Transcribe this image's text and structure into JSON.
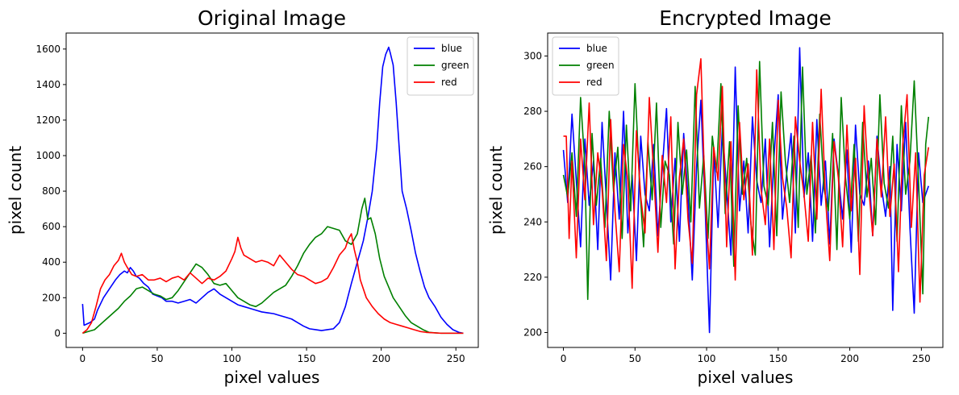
{
  "chart_data": [
    {
      "type": "line",
      "title": "Original Image",
      "xlabel": "pixel values",
      "ylabel": "pixel count",
      "xlim": [
        -11,
        265
      ],
      "ylim": [
        -80,
        1690
      ],
      "xticks": [
        0,
        50,
        100,
        150,
        200,
        250
      ],
      "yticks": [
        0,
        200,
        400,
        600,
        800,
        1000,
        1200,
        1400,
        1600
      ],
      "legend_position": "top-right",
      "grid": false,
      "series": [
        {
          "name": "blue",
          "color": "#0000ff",
          "x": [
            0,
            1,
            5,
            8,
            10,
            14,
            18,
            22,
            25,
            28,
            30,
            32,
            34,
            36,
            38,
            41,
            44,
            47,
            50,
            53,
            56,
            60,
            64,
            68,
            72,
            76,
            80,
            84,
            88,
            92,
            96,
            100,
            104,
            108,
            112,
            116,
            120,
            124,
            128,
            132,
            136,
            140,
            144,
            148,
            152,
            156,
            160,
            164,
            168,
            172,
            176,
            180,
            184,
            188,
            191,
            194,
            197,
            199,
            201,
            203,
            205,
            206,
            208,
            210,
            212,
            214,
            217,
            220,
            223,
            226,
            229,
            232,
            236,
            240,
            244,
            248,
            252,
            255
          ],
          "y": [
            165,
            45,
            60,
            80,
            130,
            200,
            250,
            300,
            330,
            350,
            340,
            370,
            350,
            320,
            310,
            280,
            260,
            220,
            210,
            200,
            180,
            180,
            170,
            180,
            190,
            170,
            200,
            230,
            250,
            220,
            200,
            180,
            160,
            150,
            140,
            130,
            120,
            115,
            110,
            100,
            90,
            80,
            60,
            40,
            25,
            20,
            15,
            20,
            25,
            60,
            150,
            280,
            400,
            520,
            650,
            800,
            1050,
            1300,
            1500,
            1570,
            1610,
            1580,
            1510,
            1300,
            1050,
            800,
            700,
            580,
            450,
            350,
            260,
            200,
            150,
            90,
            50,
            20,
            5,
            0
          ]
        },
        {
          "name": "green",
          "color": "#008000",
          "x": [
            0,
            4,
            8,
            12,
            16,
            20,
            24,
            28,
            32,
            36,
            40,
            44,
            48,
            52,
            56,
            60,
            64,
            68,
            72,
            76,
            80,
            84,
            88,
            92,
            96,
            100,
            104,
            108,
            112,
            116,
            120,
            124,
            128,
            132,
            136,
            140,
            144,
            148,
            152,
            156,
            160,
            164,
            168,
            172,
            176,
            180,
            184,
            187,
            189,
            191,
            193,
            196,
            199,
            202,
            205,
            208,
            212,
            216,
            220,
            224,
            228,
            232,
            240,
            255
          ],
          "y": [
            0,
            10,
            20,
            50,
            80,
            110,
            140,
            180,
            210,
            250,
            260,
            240,
            220,
            210,
            190,
            200,
            240,
            290,
            340,
            390,
            370,
            330,
            280,
            270,
            280,
            240,
            200,
            180,
            160,
            150,
            170,
            200,
            230,
            250,
            270,
            320,
            380,
            450,
            500,
            540,
            560,
            600,
            590,
            580,
            520,
            500,
            560,
            700,
            760,
            640,
            650,
            560,
            420,
            320,
            260,
            200,
            150,
            100,
            60,
            40,
            20,
            5,
            0,
            0
          ]
        },
        {
          "name": "red",
          "color": "#ff0000",
          "x": [
            0,
            3,
            6,
            9,
            12,
            15,
            18,
            21,
            24,
            26,
            28,
            30,
            33,
            36,
            40,
            44,
            48,
            52,
            56,
            60,
            64,
            68,
            72,
            76,
            80,
            84,
            88,
            92,
            96,
            100,
            102,
            104,
            106,
            108,
            112,
            116,
            120,
            124,
            128,
            132,
            136,
            140,
            144,
            148,
            152,
            156,
            160,
            164,
            168,
            172,
            176,
            178,
            180,
            182,
            184,
            186,
            190,
            194,
            198,
            202,
            206,
            210,
            214,
            218,
            222,
            226,
            230,
            240,
            255
          ],
          "y": [
            0,
            20,
            60,
            150,
            250,
            300,
            330,
            380,
            410,
            450,
            400,
            370,
            330,
            320,
            330,
            300,
            300,
            310,
            290,
            310,
            320,
            300,
            340,
            310,
            280,
            310,
            300,
            320,
            350,
            420,
            460,
            540,
            480,
            440,
            420,
            400,
            410,
            400,
            380,
            440,
            400,
            360,
            330,
            320,
            300,
            280,
            290,
            310,
            370,
            440,
            480,
            530,
            560,
            470,
            400,
            300,
            200,
            150,
            110,
            80,
            60,
            50,
            40,
            30,
            20,
            10,
            5,
            0,
            0
          ]
        }
      ]
    },
    {
      "type": "line",
      "title": "Encrypted Image",
      "xlabel": "pixel values",
      "ylabel": "pixel count",
      "xlim": [
        -11,
        265
      ],
      "ylim": [
        194.6,
        308.3
      ],
      "xticks": [
        0,
        50,
        100,
        150,
        200,
        250
      ],
      "yticks": [
        200,
        220,
        240,
        260,
        280,
        300
      ],
      "legend_position": "top-left",
      "grid": false,
      "series": [
        {
          "name": "blue",
          "color": "#0000ff",
          "x": [
            0,
            3,
            6,
            9,
            12,
            15,
            18,
            21,
            24,
            27,
            30,
            33,
            36,
            39,
            42,
            45,
            48,
            51,
            54,
            57,
            60,
            63,
            66,
            69,
            72,
            75,
            78,
            81,
            84,
            87,
            90,
            93,
            96,
            99,
            102,
            105,
            108,
            111,
            114,
            117,
            120,
            123,
            126,
            129,
            132,
            135,
            138,
            141,
            144,
            147,
            150,
            153,
            156,
            159,
            162,
            165,
            168,
            171,
            174,
            177,
            180,
            183,
            186,
            189,
            192,
            195,
            198,
            201,
            204,
            207,
            210,
            213,
            216,
            219,
            222,
            225,
            228,
            230,
            233,
            236,
            239,
            242,
            245,
            248,
            251,
            255
          ],
          "y": [
            266,
            247,
            279,
            255,
            231,
            270,
            246,
            262,
            230,
            276,
            248,
            219,
            265,
            241,
            280,
            236,
            257,
            226,
            271,
            250,
            244,
            268,
            235,
            259,
            281,
            240,
            263,
            233,
            272,
            249,
            219,
            260,
            284,
            245,
            200,
            266,
            238,
            274,
            252,
            228,
            296,
            244,
            262,
            236,
            278,
            255,
            247,
            270,
            231,
            263,
            286,
            241,
            258,
            272,
            236,
            303,
            249,
            265,
            233,
            277,
            246,
            262,
            232,
            270,
            257,
            241,
            266,
            229,
            275,
            250,
            246,
            262,
            235,
            271,
            253,
            242,
            260,
            208,
            268,
            244,
            276,
            238,
            207,
            265,
            247,
            253
          ]
        },
        {
          "name": "green",
          "color": "#008000",
          "x": [
            0,
            3,
            6,
            9,
            12,
            15,
            17,
            20,
            23,
            26,
            29,
            32,
            35,
            38,
            41,
            44,
            47,
            50,
            53,
            56,
            59,
            62,
            65,
            68,
            71,
            74,
            77,
            80,
            83,
            86,
            89,
            92,
            95,
            98,
            101,
            104,
            107,
            110,
            113,
            116,
            119,
            122,
            125,
            128,
            131,
            134,
            137,
            140,
            143,
            146,
            149,
            152,
            155,
            158,
            161,
            164,
            167,
            170,
            173,
            176,
            179,
            182,
            185,
            188,
            191,
            194,
            197,
            200,
            203,
            206,
            209,
            212,
            215,
            218,
            221,
            224,
            227,
            230,
            233,
            236,
            239,
            242,
            245,
            248,
            251,
            253,
            255
          ],
          "y": [
            257,
            249,
            265,
            242,
            285,
            260,
            212,
            272,
            246,
            263,
            238,
            280,
            251,
            267,
            234,
            275,
            244,
            290,
            256,
            231,
            269,
            248,
            283,
            238,
            262,
            257,
            232,
            276,
            250,
            266,
            240,
            289,
            245,
            264,
            234,
            271,
            258,
            290,
            243,
            269,
            224,
            282,
            250,
            263,
            239,
            228,
            298,
            253,
            246,
            276,
            235,
            287,
            262,
            247,
            271,
            238,
            296,
            250,
            264,
            236,
            279,
            252,
            244,
            272,
            230,
            285,
            256,
            241,
            268,
            233,
            276,
            249,
            263,
            239,
            286,
            254,
            245,
            271,
            233,
            282,
            250,
            262,
            291,
            255,
            214,
            268,
            278
          ]
        },
        {
          "name": "red",
          "color": "#ff0000",
          "x": [
            0,
            2,
            4,
            6,
            9,
            12,
            15,
            18,
            21,
            24,
            27,
            30,
            33,
            36,
            39,
            42,
            45,
            48,
            51,
            54,
            57,
            60,
            63,
            66,
            69,
            72,
            75,
            78,
            81,
            84,
            87,
            90,
            93,
            96,
            99,
            102,
            105,
            108,
            111,
            114,
            117,
            120,
            123,
            126,
            129,
            132,
            135,
            138,
            141,
            144,
            147,
            150,
            153,
            156,
            159,
            162,
            165,
            168,
            171,
            174,
            177,
            180,
            183,
            186,
            189,
            192,
            195,
            198,
            201,
            204,
            207,
            210,
            213,
            216,
            219,
            222,
            225,
            228,
            231,
            234,
            237,
            240,
            243,
            246,
            249,
            252,
            255
          ],
          "y": [
            271,
            271,
            234,
            262,
            227,
            270,
            248,
            283,
            239,
            265,
            252,
            226,
            277,
            244,
            222,
            268,
            255,
            216,
            273,
            249,
            236,
            285,
            258,
            229,
            264,
            247,
            278,
            223,
            256,
            270,
            241,
            225,
            286,
            299,
            247,
            223,
            267,
            255,
            289,
            231,
            269,
            219,
            276,
            248,
            261,
            228,
            295,
            252,
            239,
            270,
            230,
            284,
            256,
            245,
            227,
            278,
            262,
            250,
            233,
            276,
            241,
            288,
            249,
            226,
            269,
            256,
            231,
            275,
            244,
            263,
            221,
            282,
            254,
            235,
            270,
            249,
            278,
            242,
            261,
            222,
            268,
            286,
            238,
            265,
            211,
            257,
            267
          ]
        }
      ]
    }
  ]
}
